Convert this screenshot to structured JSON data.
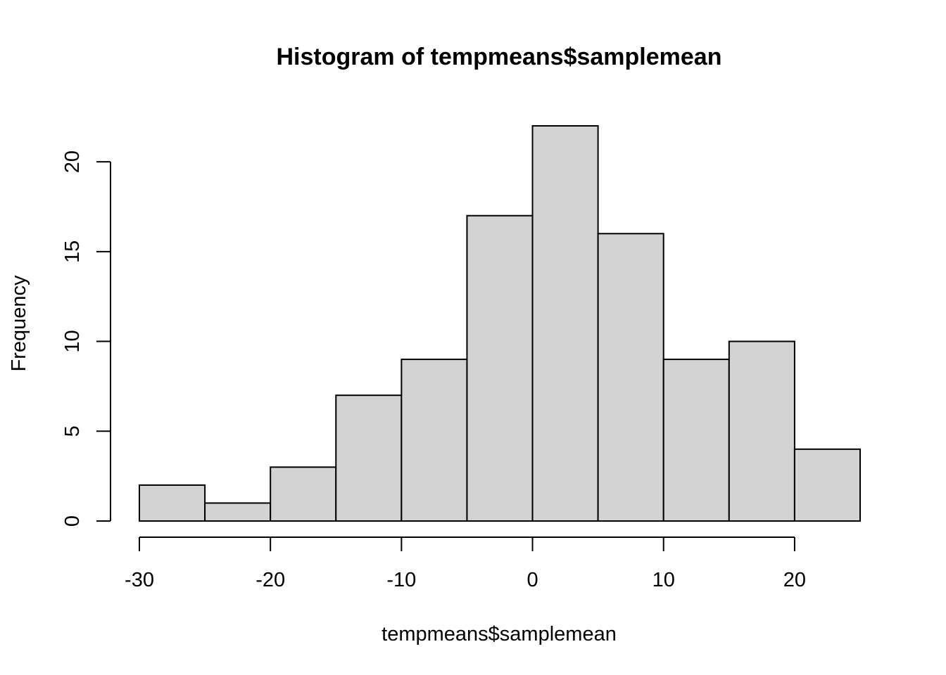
{
  "chart_data": {
    "type": "bar",
    "subtype": "histogram",
    "title": "Histogram of tempmeans$samplemean",
    "xlabel": "tempmeans$samplemean",
    "ylabel": "Frequency",
    "bins": [
      {
        "from": -30,
        "to": -25,
        "count": 2
      },
      {
        "from": -25,
        "to": -20,
        "count": 1
      },
      {
        "from": -20,
        "to": -15,
        "count": 3
      },
      {
        "from": -15,
        "to": -10,
        "count": 7
      },
      {
        "from": -10,
        "to": -5,
        "count": 9
      },
      {
        "from": -5,
        "to": 0,
        "count": 17
      },
      {
        "from": 0,
        "to": 5,
        "count": 22
      },
      {
        "from": 5,
        "to": 10,
        "count": 16
      },
      {
        "from": 10,
        "to": 15,
        "count": 9
      },
      {
        "from": 15,
        "to": 20,
        "count": 10
      },
      {
        "from": 20,
        "to": 25,
        "count": 4
      }
    ],
    "xlim": [
      -30,
      25
    ],
    "ylim": [
      0,
      22
    ],
    "x_ticks": [
      -30,
      -20,
      -10,
      0,
      10,
      20
    ],
    "x_tick_labels": [
      "-30",
      "-20",
      "-10",
      "0",
      "10",
      "20"
    ],
    "y_ticks": [
      0,
      5,
      10,
      15,
      20
    ],
    "y_tick_labels": [
      "0",
      "5",
      "10",
      "15",
      "20"
    ],
    "bar_color": "#d3d3d3",
    "border_color": "#000000",
    "grid": false,
    "legend": "none"
  }
}
